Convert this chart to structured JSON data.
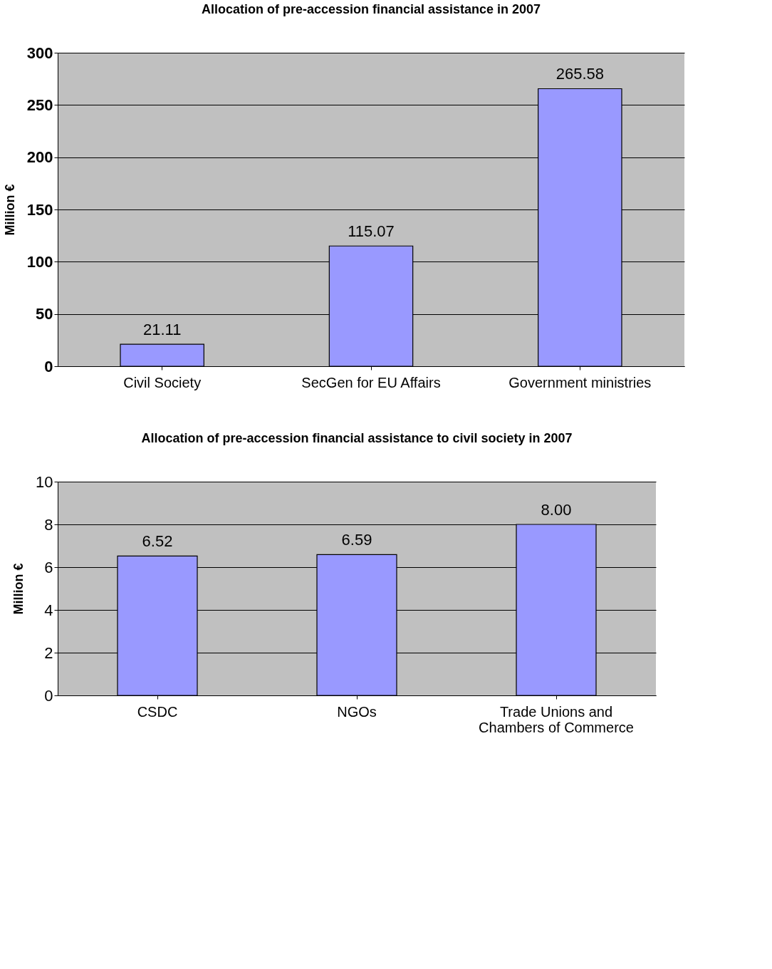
{
  "chart_data": [
    {
      "type": "bar",
      "title": "Allocation of pre-accession financial assistance in 2007",
      "ylabel": "Million €",
      "categories": [
        "Civil Society",
        "SecGen for EU Affairs",
        "Government ministries"
      ],
      "values": [
        21.11,
        115.07,
        265.58
      ],
      "value_labels": [
        "21.11",
        "115.07",
        "265.58"
      ],
      "color": "#9999ff",
      "ylim": [
        0,
        300
      ],
      "yticks": [
        0,
        50,
        100,
        150,
        200,
        250,
        300
      ],
      "grid": "y"
    },
    {
      "type": "bar",
      "title": "Allocation of pre-accession financial assistance  to civil society in 2007",
      "ylabel": "Million €",
      "categories": [
        "CSDC",
        "NGOs",
        "Trade Unions and\nChambers of Commerce"
      ],
      "values": [
        6.52,
        6.59,
        8.0
      ],
      "value_labels": [
        "6.52",
        "6.59",
        "8.00"
      ],
      "color": "#9999ff",
      "ylim": [
        0,
        10
      ],
      "yticks": [
        0,
        2,
        4,
        6,
        8,
        10
      ],
      "grid": "y"
    }
  ]
}
